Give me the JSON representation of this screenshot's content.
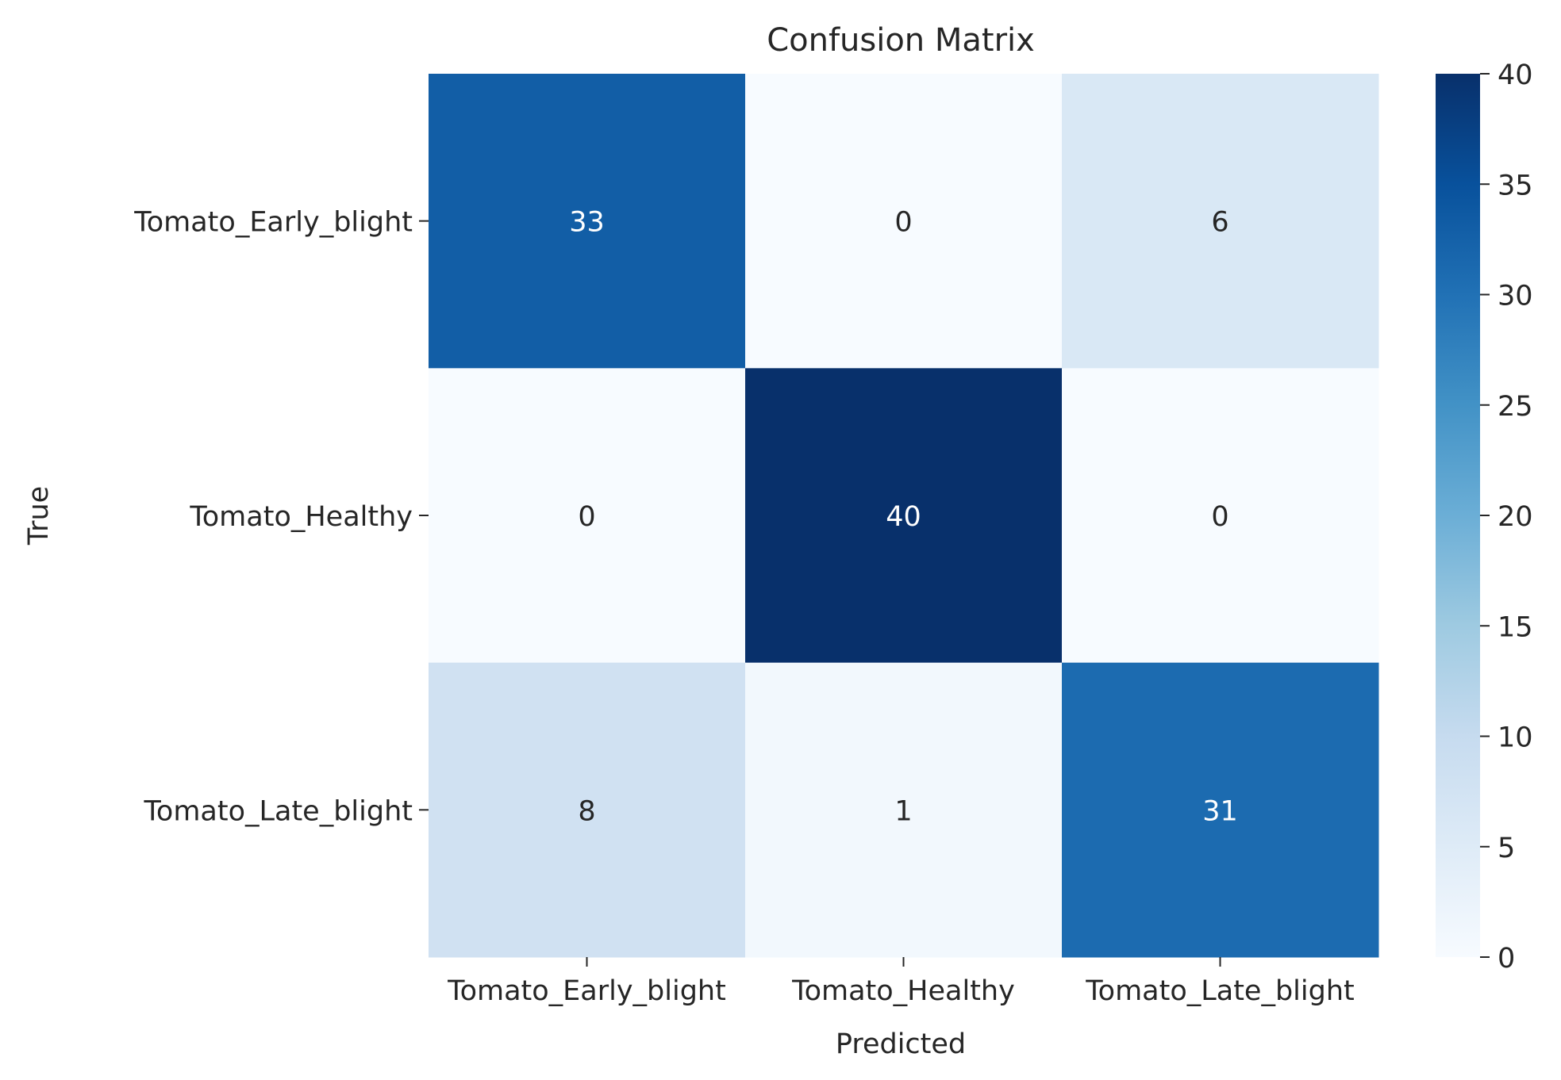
{
  "chart_data": {
    "type": "heatmap",
    "title": "Confusion Matrix",
    "xlabel": "Predicted",
    "ylabel": "True",
    "x_categories": [
      "Tomato_Early_blight",
      "Tomato_Healthy",
      "Tomato_Late_blight"
    ],
    "y_categories": [
      "Tomato_Early_blight",
      "Tomato_Healthy",
      "Tomato_Late_blight"
    ],
    "values": [
      [
        33,
        0,
        6
      ],
      [
        0,
        40,
        0
      ],
      [
        8,
        1,
        31
      ]
    ],
    "colorbar": {
      "min": 0,
      "max": 40,
      "ticks": [
        0,
        5,
        10,
        15,
        20,
        25,
        30,
        35,
        40
      ],
      "colormap": "Blues",
      "low_color": "#f7fbff",
      "high_color": "#08306b"
    }
  }
}
